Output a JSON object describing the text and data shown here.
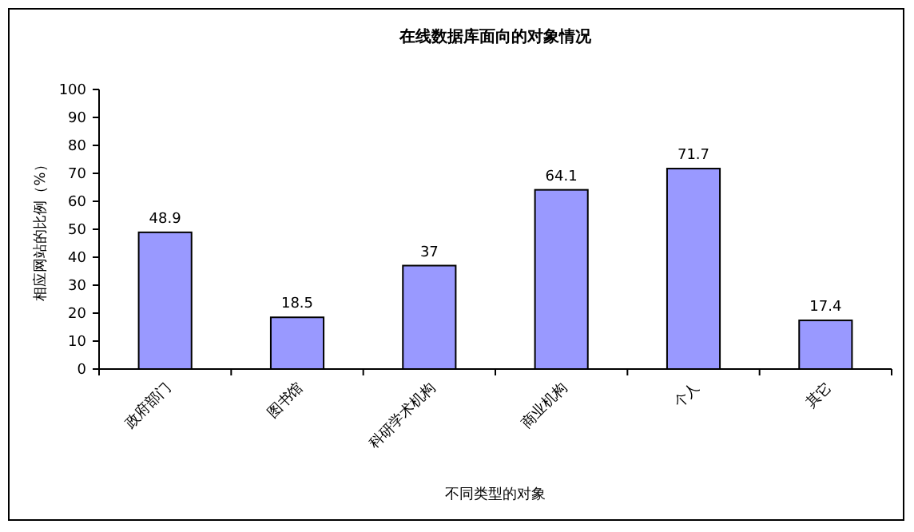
{
  "chart_data": {
    "type": "bar",
    "title": "在线数据库面向的对象情况",
    "xlabel": "不同类型的对象",
    "ylabel": "相应网站的比例（%）",
    "categories": [
      "政府部门",
      "图书馆",
      "科研学术机构",
      "商业机构",
      "个人",
      "其它"
    ],
    "values": [
      48.9,
      18.5,
      37,
      64.1,
      71.7,
      17.4
    ],
    "color": "#9999ff",
    "ylim": [
      0,
      100
    ],
    "yticks": [
      0,
      10,
      20,
      30,
      40,
      50,
      60,
      70,
      80,
      90,
      100
    ],
    "data_labels": true,
    "grid": false
  }
}
